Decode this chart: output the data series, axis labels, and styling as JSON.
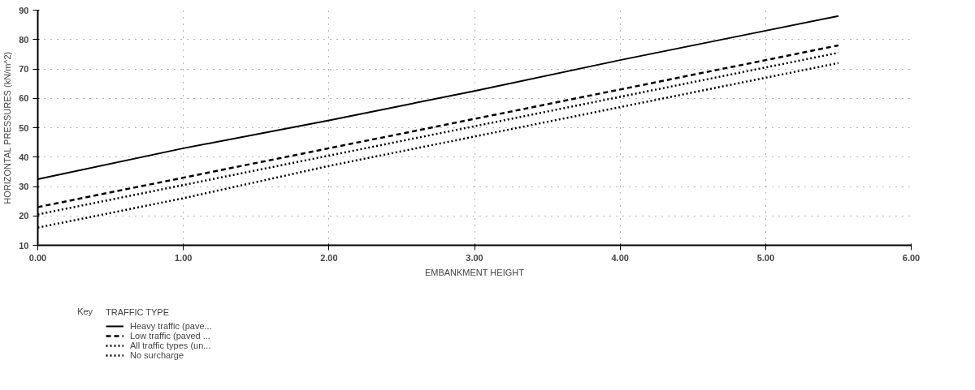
{
  "chart_data": {
    "type": "line",
    "xlabel": "EMBANKMENT HEIGHT",
    "ylabel": "HORIZONTAL PRESSURES (kN/m^2)",
    "legend_title": "TRAFFIC TYPE",
    "annotations": [
      "Key"
    ],
    "x": [
      0,
      1,
      2,
      3,
      4,
      5,
      5.5
    ],
    "series": [
      {
        "name": "Heavy traffic (pave...",
        "color": "#000000",
        "line_style": "solid",
        "values": [
          32.5,
          43,
          52.5,
          62.5,
          73,
          83,
          88
        ]
      },
      {
        "name": "Low traffic (paved ...",
        "color": "#000000",
        "line_style": "dashed",
        "values": [
          23,
          33,
          43,
          53,
          63,
          73,
          78
        ]
      },
      {
        "name": "All traffic types (un...",
        "color": "#000000",
        "line_style": "dotted",
        "values": [
          20.5,
          30.5,
          40.5,
          50.5,
          60.5,
          70.5,
          75.5
        ]
      },
      {
        "name": "No surcharge",
        "color": "#000000",
        "line_style": "dotted",
        "values": [
          16,
          26,
          37,
          47,
          57,
          67,
          72
        ]
      }
    ],
    "xlim": [
      0,
      6
    ],
    "ylim": [
      10,
      90
    ],
    "xticks": [
      {
        "value": 0,
        "label": "0.00"
      },
      {
        "value": 1,
        "label": "1.00"
      },
      {
        "value": 2,
        "label": "2.00"
      },
      {
        "value": 3,
        "label": "3.00"
      },
      {
        "value": 4,
        "label": "4.00"
      },
      {
        "value": 5,
        "label": "5.00"
      },
      {
        "value": 6,
        "label": "6.00"
      }
    ],
    "yticks": [
      10,
      20,
      30,
      40,
      50,
      60,
      70,
      80,
      90
    ],
    "grid": true,
    "legend": "bottom left"
  }
}
